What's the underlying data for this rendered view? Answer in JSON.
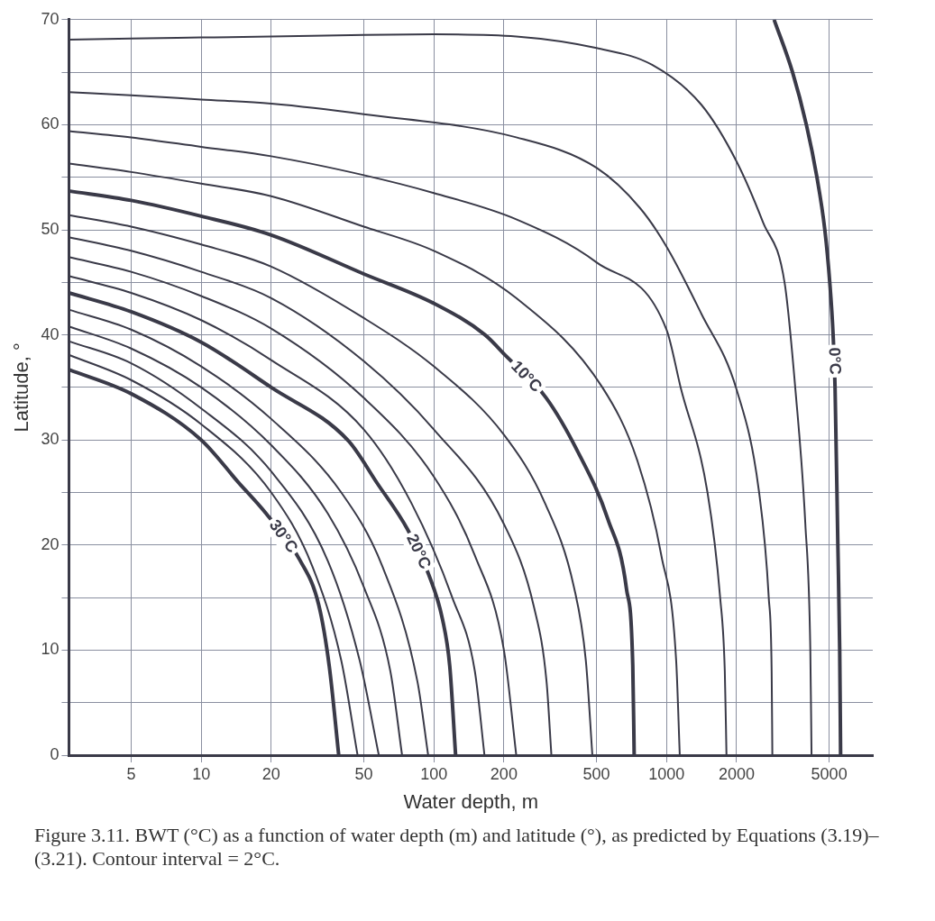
{
  "chart_data": {
    "type": "line",
    "xlabel": "Water depth, m",
    "ylabel": "Latitude, °",
    "log": "x",
    "grid": true,
    "legend": false,
    "marker": "none",
    "line_style": "solid",
    "xlim": [
      2.7,
      7700
    ],
    "xticks": [
      5,
      10,
      20,
      50,
      100,
      200,
      500,
      1000,
      2000,
      5000
    ],
    "ylim": [
      0,
      70
    ],
    "yticks": [
      0,
      {
        "value": 5,
        "label": null
      },
      10,
      {
        "value": 15,
        "label": null
      },
      20,
      {
        "value": 25,
        "label": null
      },
      30,
      {
        "value": 35,
        "label": null
      },
      40,
      {
        "value": 45,
        "label": null
      },
      50,
      {
        "value": 55,
        "label": null
      },
      60,
      {
        "value": 65,
        "label": null
      },
      70
    ],
    "annotations": [
      "Figure 3.11.  BWT (°C) as a function of water depth (m) and latitude (°), as predicted by Equations (3.19)–(3.21). Contour interval = 2°C."
    ],
    "series": [
      {
        "name": "0°C",
        "color": "#3a3a48",
        "x": [
          2900,
          3480,
          3990,
          4430,
          4790,
          5030,
          5200,
          5300,
          5450,
          5550,
          5600
        ],
        "values": [
          70,
          65,
          60,
          55,
          50,
          45,
          40,
          35,
          20,
          10,
          0
        ]
      },
      {
        "color": "#3a3a48",
        "x": [
          2.7,
          5,
          10,
          20,
          50,
          100,
          226,
          500,
          867,
          1412,
          2000,
          2600,
          3220,
          3580,
          3950,
          4150,
          4200
        ],
        "values": [
          68.1,
          68.2,
          68.3,
          68.4,
          68.55,
          68.6,
          68.4,
          67.3,
          65.7,
          61.9,
          56.5,
          50.7,
          44.9,
          34.8,
          22,
          10,
          0
        ]
      },
      {
        "color": "#3a3a48",
        "x": [
          2.7,
          5,
          10,
          20,
          50,
          226,
          500,
          767,
          1000,
          1412,
          2000,
          2500,
          2750,
          2830,
          2850
        ],
        "values": [
          63.1,
          62.8,
          62.4,
          62,
          61,
          58.8,
          55.9,
          52.1,
          48.4,
          42,
          34.8,
          25,
          15,
          8,
          0
        ]
      },
      {
        "color": "#3a3a48",
        "x": [
          2.7,
          5,
          10,
          20,
          50,
          100,
          226,
          500,
          1000,
          1150,
          1500,
          1700,
          1780,
          1810
        ],
        "values": [
          59.4,
          58.8,
          57.9,
          57,
          55.2,
          53.5,
          51,
          46.9,
          40.5,
          35,
          25,
          15,
          8,
          0
        ]
      },
      {
        "color": "#3a3a48",
        "x": [
          2.7,
          5,
          10,
          20,
          50,
          100,
          226,
          530,
          750,
          950,
          1100,
          1140
        ],
        "values": [
          56.3,
          55.5,
          54.4,
          53.2,
          50.3,
          48,
          43.5,
          35,
          28,
          19,
          9,
          0
        ]
      },
      {
        "name": "10°C",
        "color": "#3a3a48",
        "x": [
          2.7,
          5,
          10,
          20,
          50,
          100,
          166,
          204,
          304,
          413,
          561,
          673,
          716,
          726
        ],
        "values": [
          53.7,
          52.8,
          51.3,
          49.5,
          45.8,
          43,
          40,
          38,
          34,
          29,
          22.4,
          15.8,
          8.5,
          0
        ]
      },
      {
        "color": "#3a3a48",
        "x": [
          2.7,
          5,
          10,
          20,
          50,
          100,
          200,
          300,
          400,
          450,
          480
        ],
        "values": [
          51.4,
          50.3,
          48.6,
          46.5,
          41.6,
          37,
          30.5,
          24,
          16,
          9,
          0
        ]
      },
      {
        "color": "#3a3a48",
        "x": [
          2.7,
          5,
          10,
          20,
          50,
          100,
          200,
          270,
          305,
          320
        ],
        "values": [
          49.3,
          48,
          46,
          43.5,
          37.5,
          31,
          22,
          14,
          7,
          0
        ]
      },
      {
        "color": "#3a3a48",
        "x": [
          2.7,
          5,
          10,
          20,
          50,
          100,
          150,
          200,
          226
        ],
        "values": [
          47.4,
          46,
          43.7,
          40.6,
          34,
          26.5,
          19,
          10,
          0
        ]
      },
      {
        "color": "#3a3a48",
        "x": [
          2.7,
          5,
          10,
          20,
          50,
          80,
          120,
          150,
          165
        ],
        "values": [
          45.6,
          44,
          41.4,
          37.6,
          31,
          24,
          15,
          8,
          0
        ]
      },
      {
        "name": "20°C",
        "color": "#3a3a48",
        "x": [
          2.7,
          5,
          10,
          20,
          43,
          57,
          77,
          95,
          109,
          117,
          124
        ],
        "values": [
          44,
          42.2,
          39.3,
          35,
          29.9,
          25.9,
          21.5,
          17.2,
          12.9,
          8.5,
          0
        ]
      },
      {
        "color": "#3a3a48",
        "x": [
          2.7,
          5,
          10,
          20,
          40,
          60,
          85,
          94.5
        ],
        "values": [
          42.4,
          40.5,
          37,
          32,
          25,
          18,
          7,
          0
        ]
      },
      {
        "color": "#3a3a48",
        "x": [
          2.7,
          5,
          10,
          20,
          35,
          50,
          65,
          73
        ],
        "values": [
          40.8,
          38.7,
          35,
          29.5,
          23,
          16,
          8,
          0
        ]
      },
      {
        "color": "#3a3a48",
        "x": [
          2.7,
          5,
          10,
          20,
          35,
          48,
          58
        ],
        "values": [
          39.4,
          37.3,
          33,
          27,
          18.5,
          9,
          0
        ]
      },
      {
        "color": "#3a3a48",
        "x": [
          2.7,
          5,
          10,
          20,
          30,
          40,
          47
        ],
        "values": [
          38.1,
          35.7,
          31.5,
          25,
          18,
          9,
          0
        ]
      },
      {
        "name": "30°C",
        "color": "#3a3a48",
        "x": [
          2.7,
          5,
          10,
          14.4,
          19,
          26.5,
          32,
          35.5,
          39
        ],
        "values": [
          36.7,
          34.4,
          30,
          26,
          23,
          18.6,
          14.3,
          8.5,
          0
        ]
      }
    ]
  }
}
